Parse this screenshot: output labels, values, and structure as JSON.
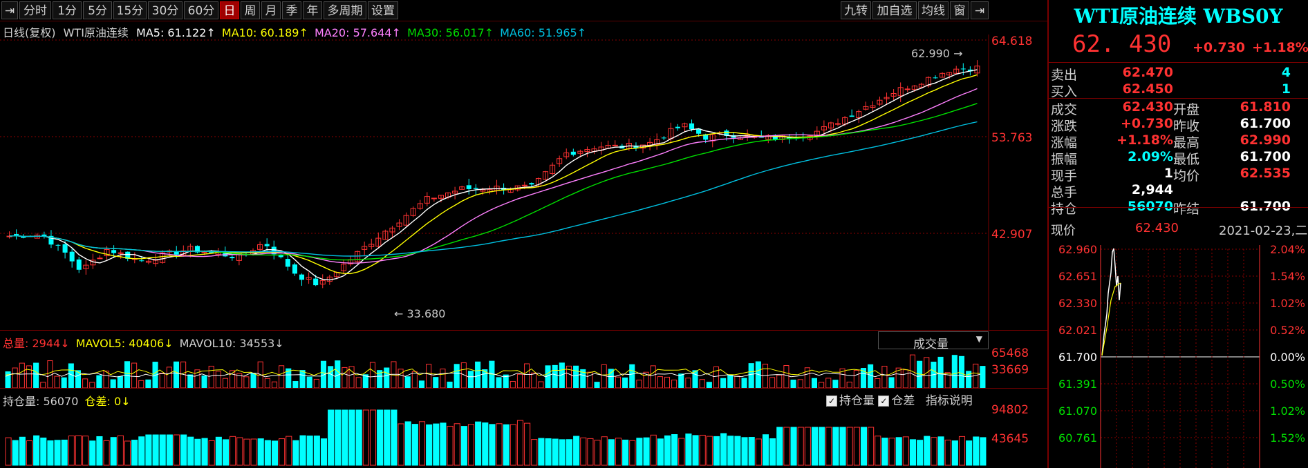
{
  "toolbar": {
    "left_items": [
      "分时",
      "1分",
      "5分",
      "15分",
      "30分",
      "60分",
      "日",
      "周",
      "月",
      "季",
      "年",
      "多周期",
      "设置"
    ],
    "active": "日",
    "right_items": [
      "九转",
      "加自选",
      "均线",
      "窗"
    ]
  },
  "ma_line": {
    "prefix": "日线(复权)",
    "name": "WTI原油连续",
    "ma5": "MA5: 61.122↑",
    "ma10": "MA10: 60.189↑",
    "ma20": "MA20: 57.644↑",
    "ma30": "MA30: 56.017↑",
    "ma60": "MA60: 51.965↑"
  },
  "price_axis": [
    "64.618",
    "53.763",
    "42.907"
  ],
  "annotations": {
    "high": "62.990",
    "low": "33.680"
  },
  "volume": {
    "total_label": "总量:",
    "total_value": "2944↓",
    "mavol5": "MAVOL5: 40406↓",
    "mavol10": "MAVOL10: 34553↓",
    "selector": "成交量",
    "axis": [
      "65468",
      "33669"
    ]
  },
  "oi": {
    "label": "持仓量:",
    "value": "56070",
    "diff_label": "仓差:",
    "diff_value": "0↓",
    "check1": "持仓量",
    "check2": "仓差",
    "explain": "指标说明",
    "axis": [
      "94802",
      "43645"
    ]
  },
  "quote": {
    "title": "WTI原油连续 WBS0Y",
    "price": "62. 430",
    "change": "+0.730",
    "change_pct": "+1.18%",
    "ask_label": "卖出",
    "ask_price": "62.470",
    "ask_vol": "4",
    "bid_label": "买入",
    "bid_price": "62.450",
    "bid_vol": "1",
    "rows": [
      {
        "l1": "成交",
        "v1": "62.430",
        "l2": "开盘",
        "v2": "61.810"
      },
      {
        "l1": "涨跌",
        "v1": "+0.730",
        "l2": "昨收",
        "v2": "61.700"
      },
      {
        "l1": "涨幅",
        "v1": "+1.18%",
        "l2": "最高",
        "v2": "62.990"
      },
      {
        "l1": "振幅",
        "v1": "2.09%",
        "l2": "最低",
        "v2": "61.700"
      },
      {
        "l1": "现手",
        "v1": "1",
        "l2": "均价",
        "v2": "62.535"
      },
      {
        "l1": "总手",
        "v1": "2,944",
        "l2": "",
        "v2": ""
      },
      {
        "l1": "持仓",
        "v1": "56070",
        "l2": "昨结",
        "v2": "61.700"
      }
    ]
  },
  "intraday": {
    "now_label": "现价",
    "now_value": "62.430",
    "date": "2021-02-23,二",
    "left_axis": [
      "62.960",
      "62.651",
      "62.330",
      "62.021",
      "61.700",
      "61.391",
      "61.070",
      "60.761"
    ],
    "right_axis": [
      "2.04%",
      "1.54%",
      "1.02%",
      "0.52%",
      "0.00%",
      "0.50%",
      "1.02%",
      "1.52%"
    ]
  },
  "colors": {
    "up": "#ff3232",
    "down": "#00ffff",
    "ma5": "#ffffff",
    "ma10": "#ffff00",
    "ma20": "#ff80ff",
    "ma30": "#00e000",
    "ma60": "#00c0e0",
    "grid": "#8b0000"
  }
}
